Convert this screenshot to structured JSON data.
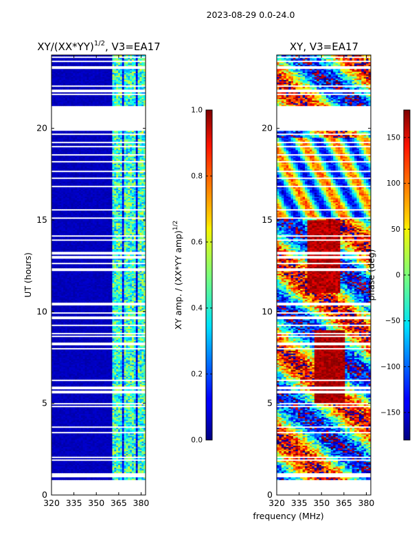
{
  "suptitle": "2023-08-29 0.0-24.0",
  "chart_data": [
    {
      "type": "heatmap",
      "title": "XY/(XX*YY)^1/2, V3=EA17",
      "title_main": "XY/(XX*YY)",
      "title_sup": "1/2",
      "title_tail": ", V3=EA17",
      "xlabel": "",
      "ylabel": "UT (hours)",
      "xlim": [
        320,
        383
      ],
      "ylim": [
        0,
        24
      ],
      "xticks": [
        320,
        335,
        350,
        365,
        380
      ],
      "yticks": [
        0,
        5,
        10,
        15,
        20
      ],
      "colorbar": {
        "label": "XY amp. / (XX*YY amp)^1/2",
        "label_main": "XY amp. / (XX*YY amp)",
        "label_sup": "1/2",
        "range": [
          0.0,
          1.0
        ],
        "ticks": [
          "0.0",
          "0.2",
          "0.4",
          "0.6",
          "0.8",
          "1.0"
        ],
        "tick_values": [
          0.0,
          0.2,
          0.4,
          0.6,
          0.8,
          1.0
        ]
      },
      "data_gap_hours": [
        [
          0.1,
          0.7
        ],
        [
          21.2,
          19.8
        ]
      ]
    },
    {
      "type": "heatmap",
      "title": "XY, V3=EA17",
      "xlabel": "frequency (MHz)",
      "ylabel": "",
      "xlim": [
        320,
        383
      ],
      "ylim": [
        0,
        24
      ],
      "xticks": [
        320,
        335,
        350,
        365,
        380
      ],
      "yticks": [
        0,
        5,
        10,
        15,
        20
      ],
      "colorbar": {
        "label": "phase (deg)",
        "range": [
          -180,
          180
        ],
        "ticks": [
          "−150",
          "−100",
          "−50",
          "0",
          "50",
          "100",
          "150"
        ],
        "tick_values": [
          -150,
          -100,
          -50,
          0,
          50,
          100,
          150
        ]
      },
      "data_gap_hours": [
        [
          0.1,
          0.7
        ],
        [
          21.2,
          19.8
        ]
      ]
    }
  ]
}
